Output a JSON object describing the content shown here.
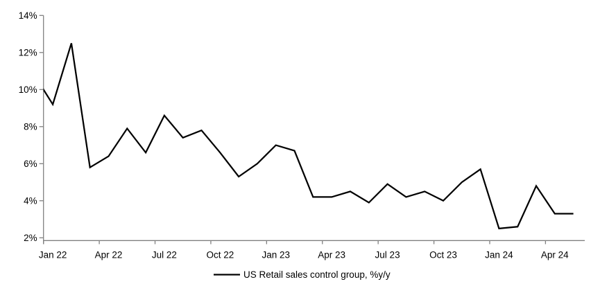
{
  "chart_data": {
    "type": "line",
    "title": "",
    "legend": "US Retail sales control group, %y/y",
    "legend_position": "bottom-center",
    "grid": false,
    "line_color": "#000000",
    "axis_color": "#808080",
    "x": [
      "Dec 21",
      "Jan 22",
      "Feb 22",
      "Mar 22",
      "Apr 22",
      "May 22",
      "Jun 22",
      "Jul 22",
      "Aug 22",
      "Sep 22",
      "Oct 22",
      "Nov 22",
      "Dec 22",
      "Jan 23",
      "Feb 23",
      "Mar 23",
      "Apr 23",
      "May 23",
      "Jun 23",
      "Jul 23",
      "Aug 23",
      "Sep 23",
      "Oct 23",
      "Nov 23",
      "Dec 23",
      "Jan 24",
      "Feb 24",
      "Mar 24",
      "Apr 24",
      "May 24"
    ],
    "values": [
      10.8,
      9.2,
      12.5,
      5.8,
      6.4,
      7.9,
      6.6,
      8.6,
      7.4,
      7.8,
      6.6,
      5.3,
      6.0,
      7.0,
      6.7,
      4.2,
      4.2,
      4.5,
      3.9,
      4.9,
      4.2,
      4.5,
      4.0,
      5.0,
      5.7,
      2.5,
      2.6,
      4.8,
      3.3,
      3.3
    ],
    "first_point_clipped_at_left_edge": true,
    "x_axis": {
      "tick_labels": [
        "Jan 22",
        "Apr 22",
        "Jul 22",
        "Oct 22",
        "Jan 23",
        "Apr 23",
        "Jul 23",
        "Oct 23",
        "Jan 24",
        "Apr 24"
      ],
      "tick_every_months": 3,
      "first_labeled_month": "Jan 22"
    },
    "y_axis": {
      "min": 2,
      "max": 14,
      "step": 2,
      "tick_labels": [
        "2%",
        "4%",
        "6%",
        "8%",
        "10%",
        "12%",
        "14%"
      ],
      "unit": "%"
    }
  }
}
